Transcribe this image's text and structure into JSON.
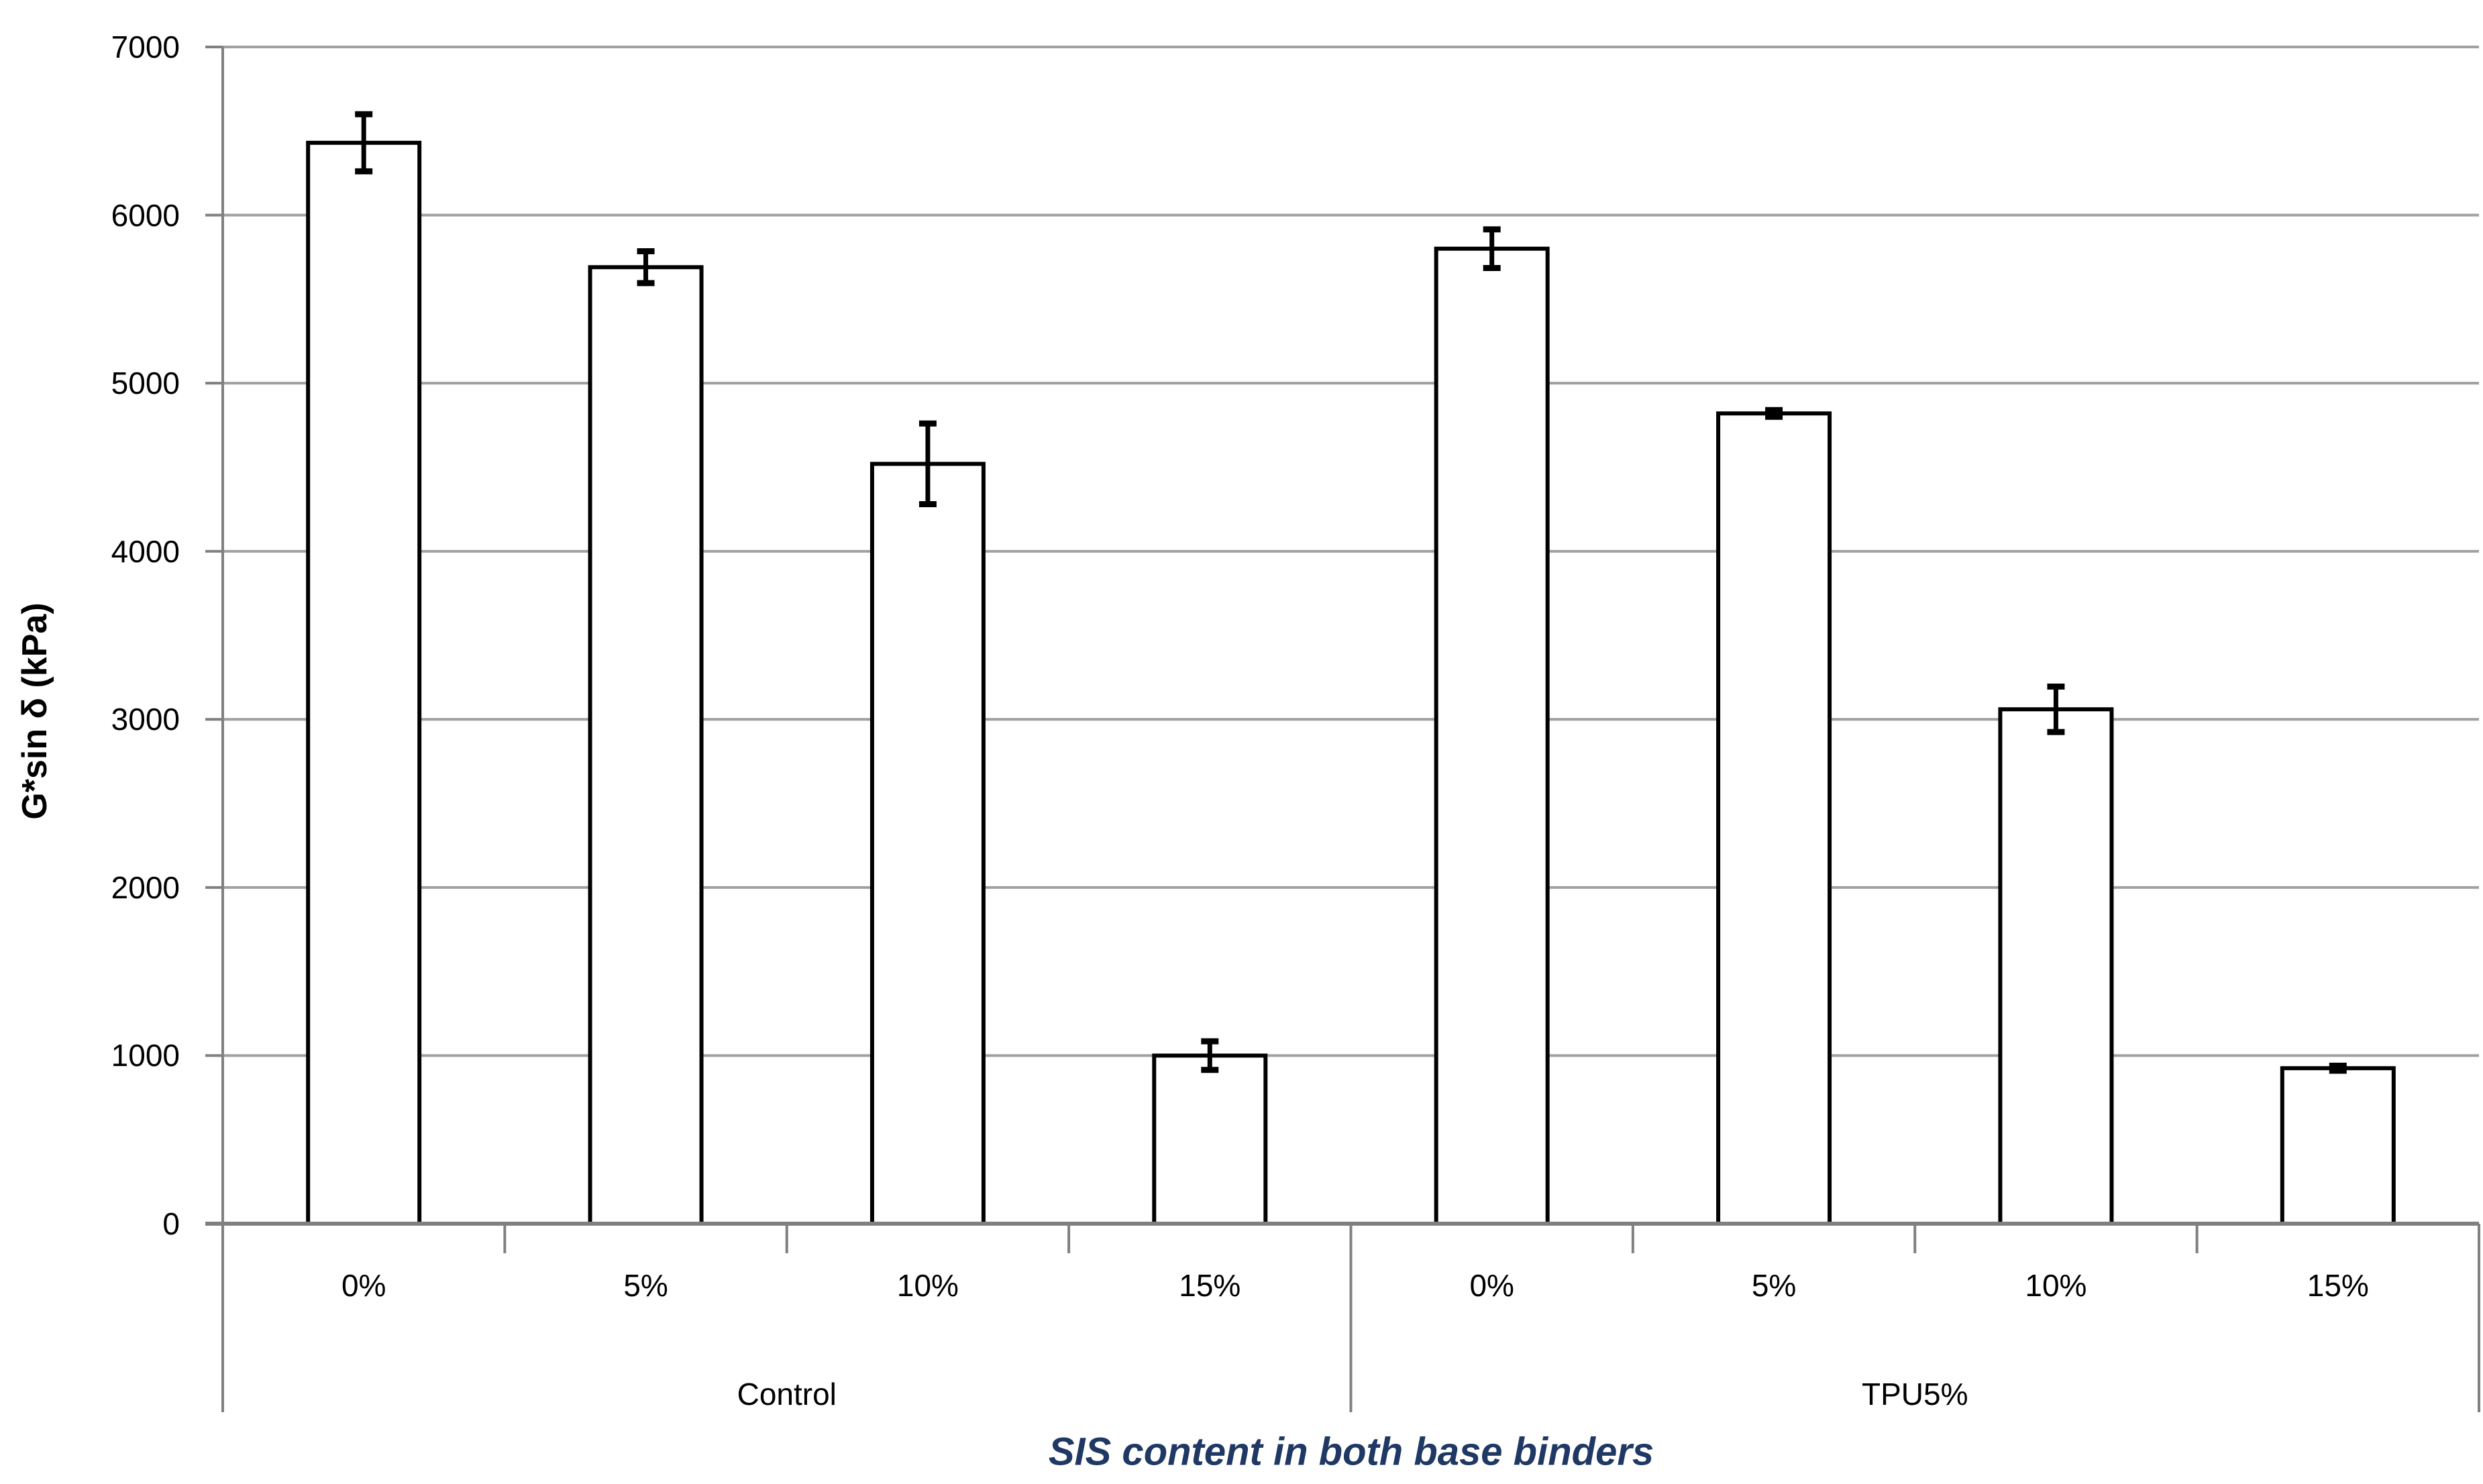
{
  "figure": {
    "background": "#ffffff",
    "text_color": "#000000"
  },
  "chart_data": {
    "type": "bar",
    "title": "",
    "xlabel": "SIS content in both base binders",
    "xlabel_color": "#1f3864",
    "ylabel": "G*sin δ (kPa)",
    "ylabel_color": "#000000",
    "ylim": [
      0,
      7000
    ],
    "y_ticks": [
      0,
      1000,
      2000,
      3000,
      4000,
      5000,
      6000,
      7000
    ],
    "grid": true,
    "legend": "none",
    "error_bars": true,
    "bar_fill": "#ffffff",
    "bar_stroke": "#000000",
    "error_bar_color": "#000000",
    "gridline_color": "#a0a0a0",
    "axis_color": "#808080",
    "groups": [
      {
        "label": "Control",
        "categories": [
          "0%",
          "5%",
          "10%",
          "15%"
        ],
        "values": [
          6430,
          5690,
          4520,
          1000
        ],
        "errors": [
          170,
          95,
          240,
          85
        ]
      },
      {
        "label": "TPU5%",
        "categories": [
          "0%",
          "5%",
          "10%",
          "15%"
        ],
        "values": [
          5800,
          4820,
          3060,
          925
        ],
        "errors": [
          115,
          20,
          135,
          15
        ]
      }
    ]
  }
}
